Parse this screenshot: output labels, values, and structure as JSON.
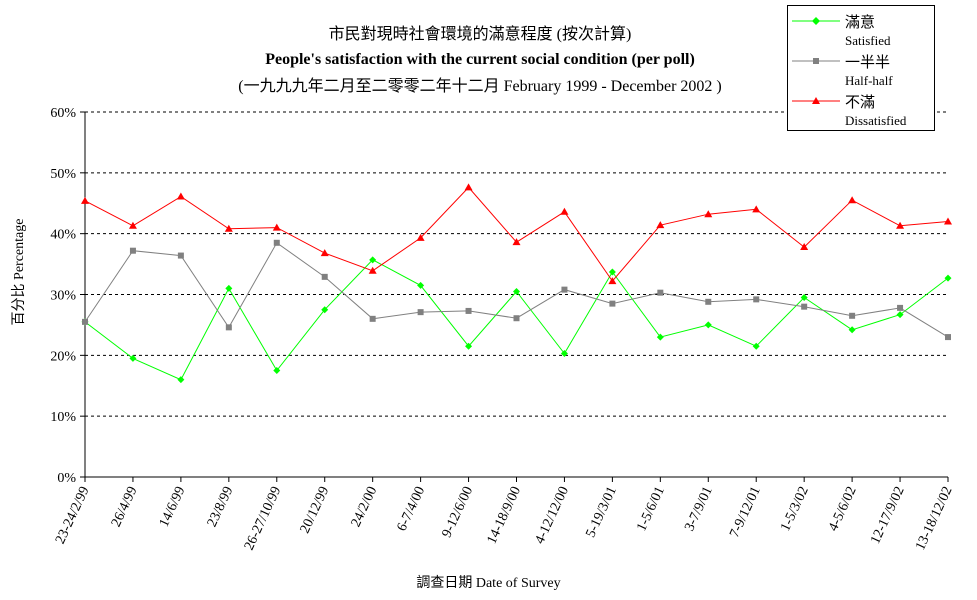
{
  "title_zh": "市民對現時社會環境的滿意程度 (按次計算)",
  "title_en": "People's satisfaction with the current social condition (per poll)",
  "subtitle": "(一九九九年二月至二零零二年十二月 February 1999 - December 2002 )",
  "ylabel": "百分比 Percentage",
  "xlabel": "調查日期 Date of Survey",
  "colors": {
    "satisfied": "#00ff00",
    "halfhalf": "#808080",
    "dissatisfied": "#ff0000"
  },
  "legend": [
    {
      "key": "satisfied",
      "zh": "滿意",
      "en": "Satisfied"
    },
    {
      "key": "halfhalf",
      "zh": "一半半",
      "en": "Half-half"
    },
    {
      "key": "dissatisfied",
      "zh": "不滿",
      "en": "Dissatisfied"
    }
  ],
  "chart_data": {
    "type": "line",
    "title": "People's satisfaction with the current social condition (per poll)",
    "xlabel": "調查日期 Date of Survey",
    "ylabel": "百分比 Percentage",
    "ylim": [
      0,
      60
    ],
    "yticks": [
      "0%",
      "10%",
      "20%",
      "30%",
      "40%",
      "50%",
      "60%"
    ],
    "grid": "horizontal dashed",
    "legend_position": "top-right",
    "categories": [
      "23-24/2/99",
      "26/4/99",
      "14/6/99",
      "23/8/99",
      "26-27/10/99",
      "20/12/99",
      "24/2/00",
      "6-7/4/00",
      "9-12/6/00",
      "14-18/9/00",
      "4-12/12/00",
      "5-19/3/01",
      "1-5/6/01",
      "3-7/9/01",
      "7-9/12/01",
      "1-5/3/02",
      "4-5/6/02",
      "12-17/9/02",
      "13-18/12/02"
    ],
    "series": [
      {
        "key": "satisfied",
        "name": "滿意 Satisfied",
        "marker": "diamond",
        "values": [
          25.5,
          19.5,
          16,
          31,
          17.5,
          27.5,
          35.7,
          31.5,
          21.5,
          30.5,
          20.3,
          33.7,
          23,
          25,
          21.5,
          29.5,
          24.2,
          26.7,
          32.7
        ]
      },
      {
        "key": "halfhalf",
        "name": "一半半 Half-half",
        "marker": "square",
        "values": [
          25.5,
          37.2,
          36.4,
          24.6,
          38.5,
          32.9,
          26,
          27.1,
          27.3,
          26.1,
          30.8,
          28.5,
          30.3,
          28.8,
          29.2,
          28,
          26.5,
          27.8,
          23
        ]
      },
      {
        "key": "dissatisfied",
        "name": "不滿 Dissatisfied",
        "marker": "triangle",
        "values": [
          45.4,
          41.3,
          46.1,
          40.8,
          41,
          36.8,
          33.9,
          39.3,
          47.6,
          38.6,
          43.6,
          32.2,
          41.4,
          43.2,
          44,
          37.8,
          45.5,
          41.3,
          42
        ]
      }
    ]
  }
}
